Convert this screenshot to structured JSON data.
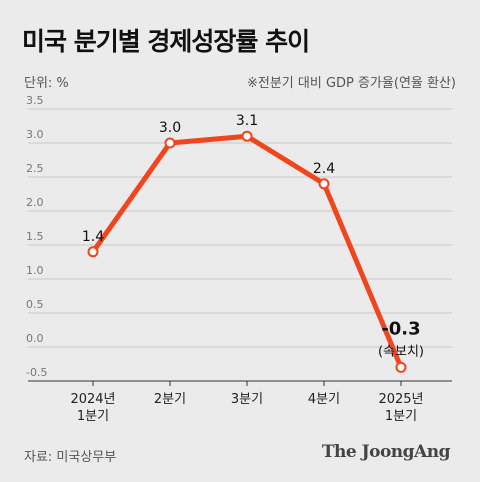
{
  "header": {
    "title": "미국 분기별 경제성장률 추이",
    "unit": "단위: %",
    "note": "※전분기 대비 GDP 증가율(연율 환산)"
  },
  "footer": {
    "source": "자료: 미국상무부",
    "brand": "The JoongAng"
  },
  "colors": {
    "line": "#f2441d",
    "background": "#ebebeb",
    "grid": "#c8c8c8"
  },
  "chart_data": {
    "type": "line",
    "title": "미국 분기별 경제성장률 추이",
    "xlabel": "",
    "ylabel": "단위: %",
    "ylim": [
      -0.5,
      3.5
    ],
    "yticks": [
      "3.5",
      "3.0",
      "2.5",
      "2.0",
      "1.5",
      "1.0",
      "0.5",
      "0.0",
      "-0.5"
    ],
    "categories": [
      [
        "2024년",
        "1분기"
      ],
      [
        "2분기"
      ],
      [
        "3분기"
      ],
      [
        "4분기"
      ],
      [
        "2025년",
        "1분기"
      ]
    ],
    "series": [
      {
        "values": [
          1.4,
          3.0,
          3.1,
          2.4,
          -0.3
        ],
        "labels": [
          "1.4",
          "3.0",
          "3.1",
          "2.4",
          "-0.3"
        ]
      }
    ],
    "annotations": [
      {
        "index": 4,
        "text": "(속보치)"
      }
    ],
    "grid": true,
    "legend": "none"
  }
}
